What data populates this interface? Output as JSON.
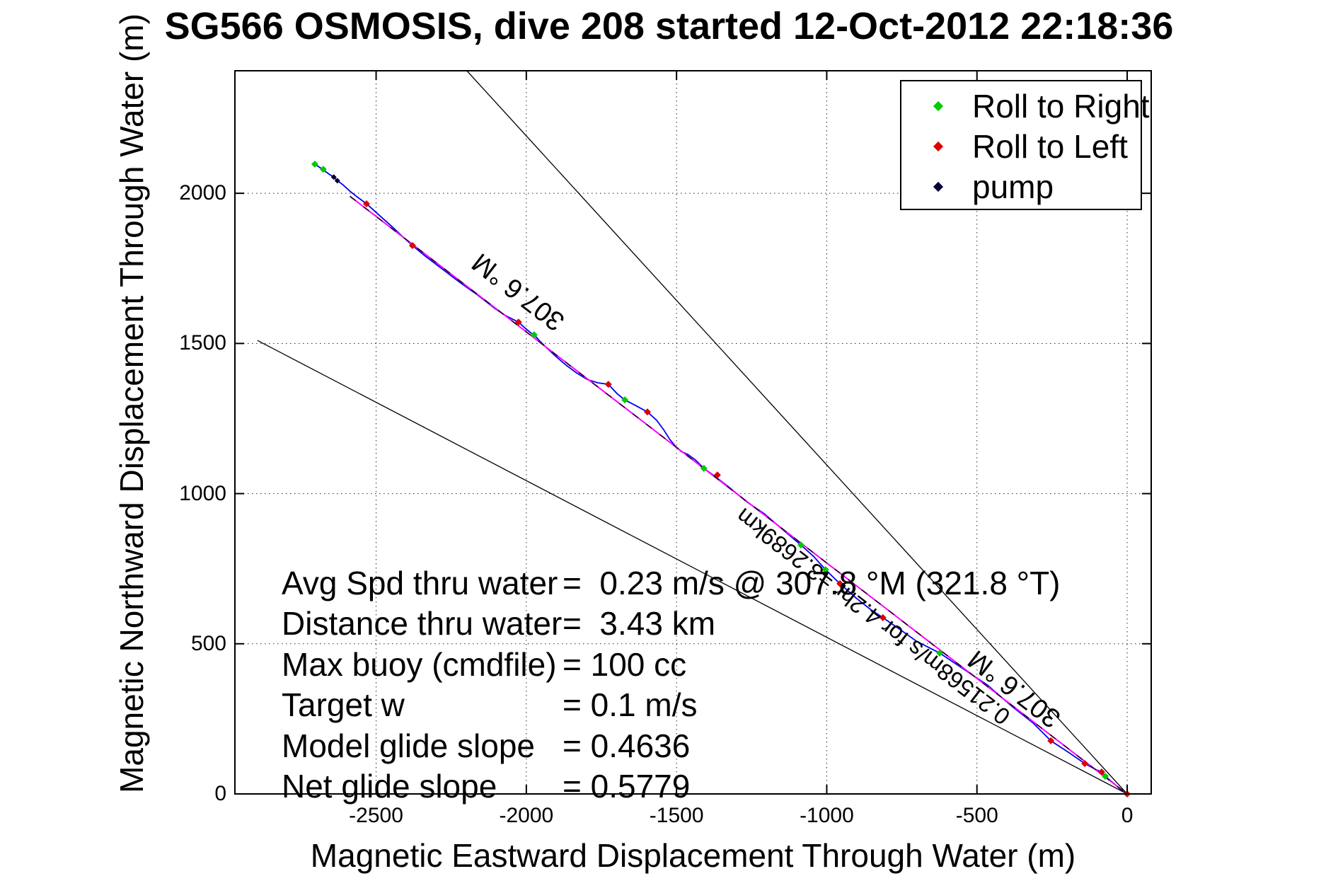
{
  "title": "SG566 OSMOSIS, dive 208 started 12-Oct-2012 22:18:36",
  "legend": {
    "items": [
      {
        "label": "Roll to Right",
        "color": "#00cc00"
      },
      {
        "label": "Roll to Left",
        "color": "#dd0000"
      },
      {
        "label": "pump",
        "color": "#000033"
      }
    ]
  },
  "stats": [
    {
      "label": "Avg Spd thru water",
      "value": "=  0.23 m/s @ 307.8 °M (321.8 °T)"
    },
    {
      "label": "Distance thru water",
      "value": "=  3.43 km"
    },
    {
      "label": "Max buoy (cmdfile)",
      "value": "= 100 cc"
    },
    {
      "label": "Target w",
      "value": "= 0.1 m/s"
    },
    {
      "label": "Model glide slope",
      "value": "= 0.4636"
    },
    {
      "label": "Net glide slope",
      "value": "= 0.5779"
    }
  ],
  "chart_data": {
    "type": "line",
    "title": "SG566 OSMOSIS, dive 208 started 12-Oct-2012 22:18:36",
    "xlabel": "Magnetic Eastward Displacement Through Water (m)",
    "ylabel": "Magnetic Northward Displacement Through Water (m)",
    "xlim": [
      -2970,
      80
    ],
    "ylim": [
      0,
      2408
    ],
    "xticks": [
      -2500,
      -2000,
      -1500,
      -1000,
      -500,
      0
    ],
    "yticks": [
      0,
      500,
      1000,
      1500,
      2000
    ],
    "grid": "dotted",
    "legend_position": "top-right",
    "bearing_deg_magnetic": 307.6,
    "series": [
      {
        "name": "track-through-water",
        "color": "#0000ee",
        "style": "solid",
        "width": 1.8,
        "points": [
          [
            -2704,
            2097
          ],
          [
            -2681,
            2082
          ],
          [
            -2657,
            2064
          ],
          [
            -2641,
            2054
          ],
          [
            -2629,
            2042
          ],
          [
            -2610,
            2028
          ],
          [
            -2587,
            2007
          ],
          [
            -2563,
            1988
          ],
          [
            -2532,
            1965
          ],
          [
            -2492,
            1929
          ],
          [
            -2445,
            1887
          ],
          [
            -2410,
            1854
          ],
          [
            -2379,
            1826
          ],
          [
            -2339,
            1793
          ],
          [
            -2280,
            1748
          ],
          [
            -2221,
            1703
          ],
          [
            -2162,
            1661
          ],
          [
            -2104,
            1616
          ],
          [
            -2068,
            1592
          ],
          [
            -2040,
            1578
          ],
          [
            -2026,
            1571
          ],
          [
            -2005,
            1552
          ],
          [
            -1986,
            1536
          ],
          [
            -1974,
            1529
          ],
          [
            -1957,
            1510
          ],
          [
            -1934,
            1487
          ],
          [
            -1903,
            1458
          ],
          [
            -1868,
            1428
          ],
          [
            -1833,
            1402
          ],
          [
            -1797,
            1380
          ],
          [
            -1762,
            1369
          ],
          [
            -1727,
            1364
          ],
          [
            -1698,
            1333
          ],
          [
            -1672,
            1312
          ],
          [
            -1632,
            1291
          ],
          [
            -1597,
            1272
          ],
          [
            -1566,
            1244
          ],
          [
            -1543,
            1213
          ],
          [
            -1522,
            1180
          ],
          [
            -1503,
            1157
          ],
          [
            -1484,
            1140
          ],
          [
            -1463,
            1131
          ],
          [
            -1437,
            1112
          ],
          [
            -1409,
            1084
          ],
          [
            -1373,
            1058
          ],
          [
            -1326,
            1022
          ],
          [
            -1267,
            973
          ],
          [
            -1208,
            933
          ],
          [
            -1150,
            883
          ],
          [
            -1086,
            829
          ],
          [
            -1044,
            791
          ],
          [
            -1004,
            747
          ],
          [
            -956,
            700
          ],
          [
            -902,
            652
          ],
          [
            -855,
            615
          ],
          [
            -813,
            587
          ],
          [
            -761,
            551
          ],
          [
            -702,
            509
          ],
          [
            -624,
            469
          ],
          [
            -549,
            419
          ],
          [
            -466,
            363
          ],
          [
            -384,
            292
          ],
          [
            -313,
            236
          ],
          [
            -254,
            177
          ],
          [
            -196,
            139
          ],
          [
            -141,
            101
          ],
          [
            -106,
            82
          ],
          [
            -85,
            73
          ],
          [
            -73,
            59
          ],
          [
            -42,
            33
          ],
          [
            -19,
            12
          ],
          [
            0,
            0
          ]
        ]
      },
      {
        "name": "rhumb-line",
        "color": "#ff00ff",
        "style": "solid",
        "width": 2,
        "points": [
          [
            -2587,
            1990
          ],
          [
            0,
            0
          ]
        ]
      },
      {
        "name": "bearing-line-307.6M",
        "color": "#000000",
        "style": "dashed",
        "width": 1.3,
        "points": [
          [
            -2587,
            1990
          ],
          [
            0,
            0
          ]
        ]
      },
      {
        "name": "fan-line-upper",
        "color": "#000000",
        "style": "solid",
        "width": 1.3,
        "points": [
          [
            -2198,
            2408
          ],
          [
            0,
            0
          ]
        ]
      },
      {
        "name": "fan-line-lower",
        "color": "#000000",
        "style": "solid",
        "width": 1.3,
        "points": [
          [
            -2895,
            1510
          ],
          [
            0,
            0
          ]
        ]
      }
    ],
    "markers": [
      {
        "name": "Roll to Right",
        "color": "#00cc00",
        "size": 5,
        "points": [
          [
            -2704,
            2097
          ],
          [
            -2676,
            2080
          ],
          [
            -1974,
            1529
          ],
          [
            -1672,
            1312
          ],
          [
            -1409,
            1084
          ],
          [
            -1086,
            829
          ],
          [
            -1004,
            747
          ],
          [
            -624,
            469
          ],
          [
            -73,
            59
          ]
        ]
      },
      {
        "name": "Roll to Left",
        "color": "#dd0000",
        "size": 5,
        "points": [
          [
            -2532,
            1965
          ],
          [
            -2379,
            1826
          ],
          [
            -2026,
            1571
          ],
          [
            -1727,
            1364
          ],
          [
            -1597,
            1272
          ],
          [
            -1364,
            1062
          ],
          [
            -956,
            700
          ],
          [
            -813,
            587
          ],
          [
            -254,
            177
          ],
          [
            -141,
            101
          ],
          [
            -85,
            73
          ],
          [
            0,
            0
          ]
        ]
      },
      {
        "name": "pump",
        "color": "#000033",
        "size": 4,
        "points": [
          [
            -2641,
            2054
          ],
          [
            -2629,
            2042
          ]
        ]
      }
    ],
    "annotations": [
      {
        "text": "307.6 °M",
        "x": -2026,
        "y": 1673,
        "font": "medium"
      },
      {
        "text": "307.6 °M",
        "x": -375,
        "y": 351,
        "font": "medium"
      },
      {
        "text": "0.21568m/s for 4.2hr =3.2689km",
        "x": -846,
        "y": 591,
        "font": "small"
      }
    ]
  }
}
